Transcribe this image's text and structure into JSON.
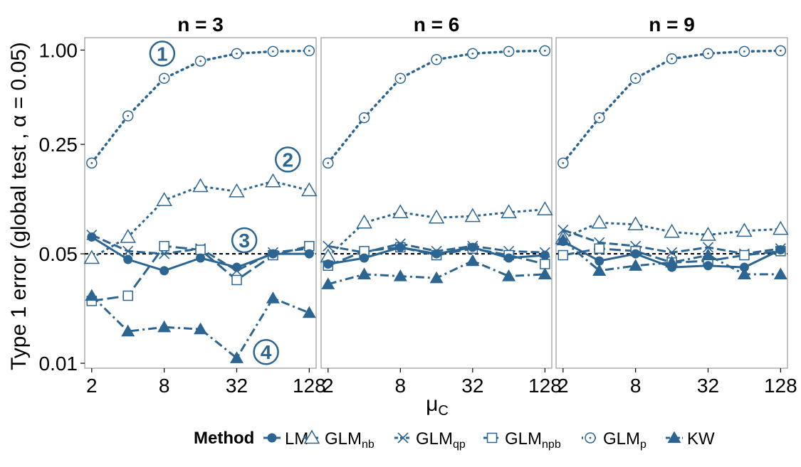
{
  "chart_data": {
    "type": "line",
    "ylabel": "Type 1 error (global test , α = 0.05)",
    "xlabel": {
      "main": "μ",
      "sub": "C"
    },
    "y_scale": "log",
    "x_scale": "log2",
    "ylim": [
      0.0093,
      1.2
    ],
    "xlim": [
      1.75,
      146
    ],
    "y_ticks": [
      {
        "value": 0.01,
        "label": "0.01"
      },
      {
        "value": 0.05,
        "label": "0.05"
      },
      {
        "value": 0.25,
        "label": "0.25"
      },
      {
        "value": 1.0,
        "label": "1.00"
      }
    ],
    "x_ticks": [
      {
        "value": 2,
        "label": "2"
      },
      {
        "value": 8,
        "label": "8"
      },
      {
        "value": 32,
        "label": "32"
      },
      {
        "value": 128,
        "label": "128"
      }
    ],
    "x": [
      2,
      4,
      8,
      16,
      32,
      64,
      128
    ],
    "reference_line": 0.05,
    "color": "#2c6591",
    "grid": false,
    "legend": {
      "position": "bottom",
      "title": "Method",
      "entries": [
        {
          "key": "LM",
          "main": "LM",
          "sub": ""
        },
        {
          "key": "GLMnb",
          "main": "GLM",
          "sub": "nb"
        },
        {
          "key": "GLMqp",
          "main": "GLM",
          "sub": "qp"
        },
        {
          "key": "GLMnpb",
          "main": "GLM",
          "sub": "npb"
        },
        {
          "key": "GLMp",
          "main": "GLM",
          "sub": "p"
        },
        {
          "key": "KW",
          "main": "KW",
          "sub": ""
        }
      ]
    },
    "panels": [
      {
        "title": "n = 3",
        "series": {
          "LM": [
            0.064,
            0.046,
            0.039,
            0.047,
            0.041,
            0.05,
            0.05
          ],
          "GLMnb": [
            0.047,
            0.064,
            0.11,
            0.135,
            0.125,
            0.145,
            0.127
          ],
          "GLMqp": [
            0.066,
            0.052,
            0.05,
            0.054,
            0.039,
            0.051,
            0.054
          ],
          "GLMnpb": [
            0.025,
            0.027,
            0.056,
            0.053,
            0.034,
            0.049,
            0.056
          ],
          "GLMp": [
            0.19,
            0.38,
            0.66,
            0.85,
            0.95,
            0.98,
            0.99
          ],
          "KW": [
            0.027,
            0.016,
            0.017,
            0.0165,
            0.0108,
            0.026,
            0.021
          ]
        },
        "annotations": [
          {
            "label": "1",
            "x": 7.7,
            "y": 0.95
          },
          {
            "label": "2",
            "x": 85,
            "y": 0.2
          },
          {
            "label": "3",
            "x": 37,
            "y": 0.061
          },
          {
            "label": "4",
            "x": 56,
            "y": 0.0118
          }
        ]
      },
      {
        "title": "n = 6",
        "series": {
          "LM": [
            0.043,
            0.047,
            0.055,
            0.05,
            0.055,
            0.047,
            0.049
          ],
          "GLMnb": [
            0.048,
            0.079,
            0.092,
            0.085,
            0.087,
            0.092,
            0.096
          ],
          "GLMqp": [
            0.056,
            0.051,
            0.058,
            0.052,
            0.056,
            0.052,
            0.051
          ],
          "GLMnpb": [
            0.042,
            0.052,
            0.055,
            0.049,
            0.054,
            0.049,
            0.043
          ],
          "GLMp": [
            0.19,
            0.37,
            0.66,
            0.87,
            0.95,
            0.98,
            0.99
          ],
          "KW": [
            0.032,
            0.037,
            0.036,
            0.035,
            0.045,
            0.036,
            0.037
          ]
        },
        "annotations": []
      },
      {
        "title": "n = 9",
        "series": {
          "LM": [
            0.06,
            0.045,
            0.05,
            0.041,
            0.042,
            0.041,
            0.053
          ],
          "GLMnb": [
            0.063,
            0.079,
            0.077,
            0.069,
            0.066,
            0.07,
            0.072
          ],
          "GLMqp": [
            0.071,
            0.059,
            0.056,
            0.051,
            0.055,
            0.05,
            0.054
          ],
          "GLMnpb": [
            0.049,
            0.054,
            0.052,
            0.044,
            0.045,
            0.049,
            0.052
          ],
          "GLMp": [
            0.19,
            0.37,
            0.66,
            0.88,
            0.95,
            0.98,
            0.99
          ],
          "KW": [
            0.061,
            0.039,
            0.042,
            0.044,
            0.049,
            0.037,
            0.037
          ]
        },
        "annotations": []
      }
    ]
  }
}
